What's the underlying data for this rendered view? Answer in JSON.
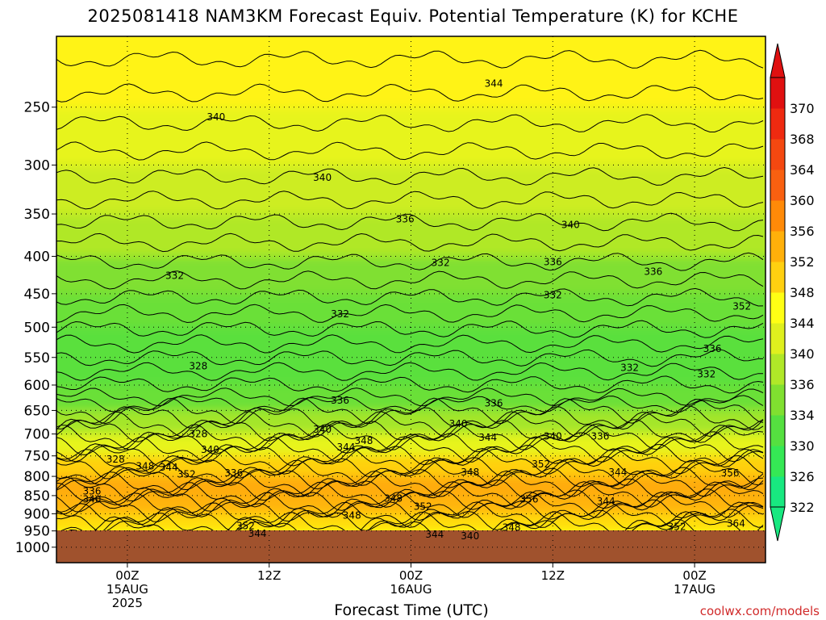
{
  "title": "2025081418 NAM3KM Forecast Equiv. Potential Temperature (K) for KCHE",
  "credit": "coolwx.com/models",
  "chart_data": {
    "type": "heatmap",
    "title": "2025081418 NAM3KM Forecast Equiv. Potential Temperature (K) for KCHE",
    "xlabel": "Forecast Time (UTC)",
    "ylabel": "",
    "y_scale": "log-pressure, inverted",
    "ylim": [
      1050,
      200
    ],
    "xlim_hours_from_init": [
      0,
      60
    ],
    "grid": true,
    "yticks": [
      "250",
      "300",
      "350",
      "400",
      "450",
      "500",
      "550",
      "600",
      "650",
      "700",
      "750",
      "800",
      "850",
      "900",
      "950",
      "1000"
    ],
    "ytick_values": [
      250,
      300,
      350,
      400,
      450,
      500,
      550,
      600,
      650,
      700,
      750,
      800,
      850,
      900,
      950,
      1000
    ],
    "xticks": [
      {
        "hour": 6,
        "label": [
          "00Z",
          "15AUG",
          "2025"
        ]
      },
      {
        "hour": 18,
        "label": [
          "12Z"
        ]
      },
      {
        "hour": 30,
        "label": [
          "00Z",
          "16AUG"
        ]
      },
      {
        "hour": 42,
        "label": [
          "12Z"
        ]
      },
      {
        "hour": 54,
        "label": [
          "00Z",
          "17AUG"
        ]
      }
    ],
    "colorbar": {
      "labels": [
        "322",
        "326",
        "330",
        "334",
        "336",
        "340",
        "344",
        "348",
        "352",
        "356",
        "360",
        "364",
        "368",
        "370"
      ],
      "colors": [
        "#18e880",
        "#35e855",
        "#55e040",
        "#80e030",
        "#b0e828",
        "#dff01e",
        "#ffff14",
        "#ffd010",
        "#ffb00a",
        "#ff8a08",
        "#f96010",
        "#f44810",
        "#ef2a10",
        "#e01010"
      ]
    },
    "profile_pressure": [
      200,
      250,
      300,
      350,
      400,
      450,
      500,
      550,
      600,
      650,
      700,
      750,
      800,
      850,
      900,
      950
    ],
    "profile_theta_e": [
      348,
      342,
      340,
      337,
      335,
      333,
      331,
      330,
      331,
      333,
      338,
      344,
      352,
      353,
      350,
      344
    ],
    "contour_labels": [
      {
        "hour": 13.5,
        "p": 258,
        "text": "340"
      },
      {
        "hour": 37,
        "p": 232,
        "text": "344"
      },
      {
        "hour": 22.5,
        "p": 312,
        "text": "340"
      },
      {
        "hour": 29.5,
        "p": 356,
        "text": "336"
      },
      {
        "hour": 43.5,
        "p": 362,
        "text": "340"
      },
      {
        "hour": 10,
        "p": 425,
        "text": "332"
      },
      {
        "hour": 32.5,
        "p": 408,
        "text": "332"
      },
      {
        "hour": 42,
        "p": 407,
        "text": "336"
      },
      {
        "hour": 50.5,
        "p": 420,
        "text": "336"
      },
      {
        "hour": 24,
        "p": 480,
        "text": "332"
      },
      {
        "hour": 42,
        "p": 452,
        "text": "332"
      },
      {
        "hour": 58,
        "p": 468,
        "text": "352"
      },
      {
        "hour": 55.5,
        "p": 535,
        "text": "336"
      },
      {
        "hour": 12,
        "p": 565,
        "text": "328"
      },
      {
        "hour": 48.5,
        "p": 568,
        "text": "332"
      },
      {
        "hour": 55,
        "p": 580,
        "text": "332"
      },
      {
        "hour": 24,
        "p": 630,
        "text": "336"
      },
      {
        "hour": 37,
        "p": 635,
        "text": "336"
      },
      {
        "hour": 34,
        "p": 678,
        "text": "340"
      },
      {
        "hour": 12,
        "p": 700,
        "text": "328"
      },
      {
        "hour": 22.5,
        "p": 690,
        "text": "340"
      },
      {
        "hour": 42,
        "p": 705,
        "text": "340"
      },
      {
        "hour": 46,
        "p": 705,
        "text": "336"
      },
      {
        "hour": 36.5,
        "p": 708,
        "text": "344"
      },
      {
        "hour": 26,
        "p": 715,
        "text": "348"
      },
      {
        "hour": 24.5,
        "p": 730,
        "text": "344"
      },
      {
        "hour": 13,
        "p": 735,
        "text": "340"
      },
      {
        "hour": 5,
        "p": 758,
        "text": "328"
      },
      {
        "hour": 7.5,
        "p": 775,
        "text": "348"
      },
      {
        "hour": 9.5,
        "p": 778,
        "text": "344"
      },
      {
        "hour": 11,
        "p": 795,
        "text": "352"
      },
      {
        "hour": 15,
        "p": 792,
        "text": "336"
      },
      {
        "hour": 35,
        "p": 790,
        "text": "348"
      },
      {
        "hour": 41,
        "p": 770,
        "text": "352"
      },
      {
        "hour": 47.5,
        "p": 790,
        "text": "344"
      },
      {
        "hour": 57,
        "p": 792,
        "text": "356"
      },
      {
        "hour": 3,
        "p": 838,
        "text": "336"
      },
      {
        "hour": 3,
        "p": 860,
        "text": "340"
      },
      {
        "hour": 28.5,
        "p": 858,
        "text": "348"
      },
      {
        "hour": 31,
        "p": 880,
        "text": "352"
      },
      {
        "hour": 40,
        "p": 860,
        "text": "356"
      },
      {
        "hour": 46.5,
        "p": 865,
        "text": "344"
      },
      {
        "hour": 25,
        "p": 905,
        "text": "348"
      },
      {
        "hour": 16,
        "p": 935,
        "text": "352"
      },
      {
        "hour": 17,
        "p": 958,
        "text": "344"
      },
      {
        "hour": 38.5,
        "p": 940,
        "text": "348"
      },
      {
        "hour": 32,
        "p": 960,
        "text": "344"
      },
      {
        "hour": 35,
        "p": 965,
        "text": "340"
      },
      {
        "hour": 52.5,
        "p": 938,
        "text": "352"
      },
      {
        "hour": 57.5,
        "p": 928,
        "text": "364"
      }
    ]
  }
}
